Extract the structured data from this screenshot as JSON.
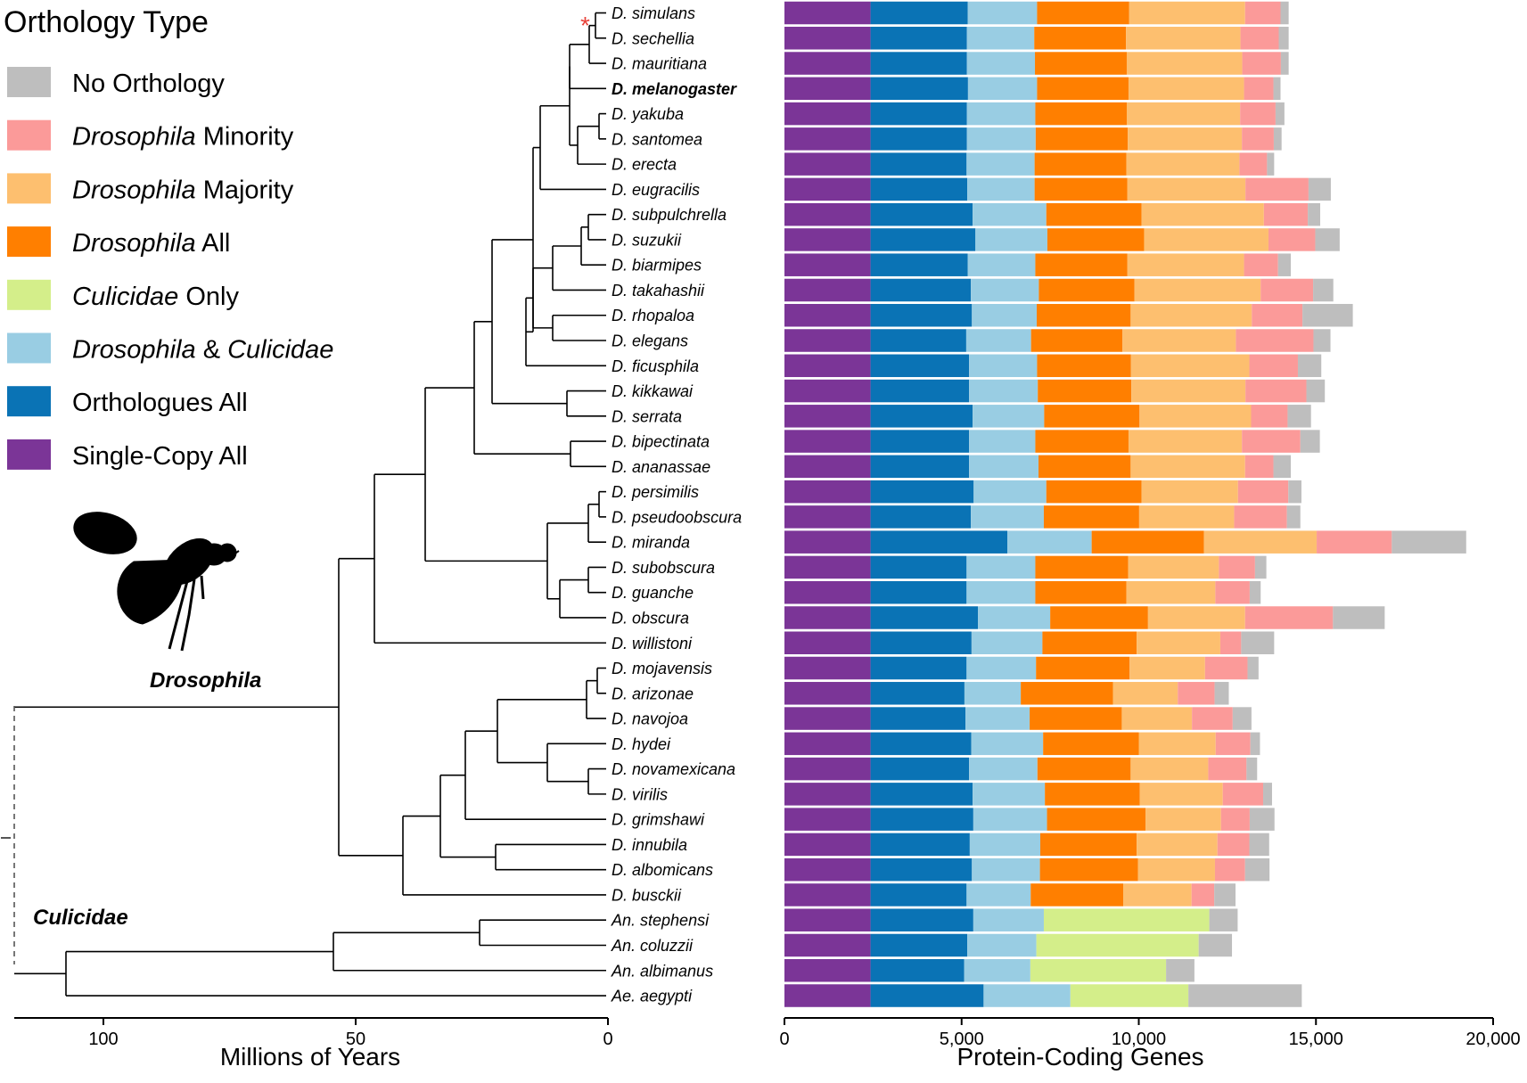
{
  "legend": {
    "title": "Orthology Type",
    "items": [
      {
        "key": "no_orthology",
        "parts": [
          {
            "t": "No Orthology",
            "i": false
          }
        ],
        "color": "#BEBEBE"
      },
      {
        "key": "drosophila_minority",
        "parts": [
          {
            "t": "Drosophila",
            "i": true
          },
          {
            "t": " Minority",
            "i": false
          }
        ],
        "color": "#FB9A99"
      },
      {
        "key": "drosophila_majority",
        "parts": [
          {
            "t": "Drosophila",
            "i": true
          },
          {
            "t": " Majority",
            "i": false
          }
        ],
        "color": "#FDBF6F"
      },
      {
        "key": "drosophila_all",
        "parts": [
          {
            "t": "Drosophila",
            "i": true
          },
          {
            "t": " All",
            "i": false
          }
        ],
        "color": "#FF7F00"
      },
      {
        "key": "culicidae_only",
        "parts": [
          {
            "t": "Culicidae",
            "i": true
          },
          {
            "t": " Only",
            "i": false
          }
        ],
        "color": "#D4EE8A"
      },
      {
        "key": "drosophila_culicidae",
        "parts": [
          {
            "t": "Drosophila",
            "i": true
          },
          {
            "t": " & ",
            "i": false
          },
          {
            "t": "Culicidae",
            "i": true
          }
        ],
        "color": "#99CDE3"
      },
      {
        "key": "orthologues_all",
        "parts": [
          {
            "t": "Orthologues All",
            "i": false
          }
        ],
        "color": "#0A73B5"
      },
      {
        "key": "single_copy_all",
        "parts": [
          {
            "t": "Single-Copy All",
            "i": false
          }
        ],
        "color": "#7B3597"
      }
    ]
  },
  "tree": {
    "axis_title": "Millions of Years",
    "ticks": [
      100,
      50,
      0
    ],
    "range": [
      120,
      0
    ],
    "clade_labels": [
      "Drosophila",
      "Culicidae"
    ],
    "marker": "*"
  },
  "chart_data": {
    "type": "bar",
    "orientation": "horizontal",
    "stacked": true,
    "xlabel": "Protein-Coding Genes",
    "xlim": [
      0,
      20000
    ],
    "xticks": [
      0,
      5000,
      10000,
      15000,
      20000
    ],
    "xtick_labels": [
      "0",
      "5,000",
      "10,000",
      "15,000",
      "20,000"
    ],
    "categories": [
      "D. simulans",
      "D. sechellia",
      "D. mauritiana",
      "D. melanogaster",
      "D. yakuba",
      "D. santomea",
      "D. erecta",
      "D. eugracilis",
      "D. subpulchrella",
      "D. suzukii",
      "D. biarmipes",
      "D. takahashii",
      "D. rhopaloa",
      "D. elegans",
      "D. ficusphila",
      "D. kikkawai",
      "D. serrata",
      "D. bipectinata",
      "D. ananassae",
      "D. persimilis",
      "D. pseudoobscura",
      "D. miranda",
      "D. subobscura",
      "D. guanche",
      "D. obscura",
      "D. willistoni",
      "D. mojavensis",
      "D. arizonae",
      "D. navojoa",
      "D. hydei",
      "D. novamexicana",
      "D. virilis",
      "D. grimshawi",
      "D. innubila",
      "D. albomicans",
      "D. busckii",
      "An. stephensi",
      "An. coluzzii",
      "An. albimanus",
      "Ae. aegypti"
    ],
    "bold_category": "D. melanogaster",
    "series": [
      {
        "name": "Single-Copy All",
        "color": "#7B3597",
        "values": [
          2430,
          2430,
          2430,
          2430,
          2430,
          2430,
          2430,
          2430,
          2430,
          2430,
          2430,
          2430,
          2430,
          2430,
          2430,
          2430,
          2430,
          2430,
          2430,
          2430,
          2430,
          2430,
          2430,
          2430,
          2430,
          2430,
          2430,
          2430,
          2430,
          2430,
          2430,
          2430,
          2430,
          2430,
          2430,
          2430,
          2430,
          2430,
          2430,
          2430
        ]
      },
      {
        "name": "Orthologues All",
        "color": "#0A73B5",
        "values": [
          2740,
          2720,
          2720,
          2750,
          2720,
          2720,
          2710,
          2730,
          2880,
          2960,
          2740,
          2830,
          2860,
          2700,
          2780,
          2780,
          2880,
          2780,
          2780,
          2910,
          2830,
          3860,
          2710,
          2710,
          3030,
          2850,
          2710,
          2650,
          2680,
          2840,
          2780,
          2880,
          2900,
          2800,
          2860,
          2710,
          2900,
          2730,
          2640,
          3190
        ]
      },
      {
        "name": "Drosophila & Culicidae",
        "color": "#99CDE3",
        "values": [
          1960,
          1900,
          1920,
          1950,
          1930,
          1940,
          1920,
          1900,
          2080,
          2030,
          1910,
          1920,
          1830,
          1830,
          1920,
          1940,
          2020,
          1870,
          1960,
          2050,
          2060,
          2380,
          1940,
          1940,
          2040,
          2000,
          1960,
          1590,
          1810,
          2030,
          1930,
          2040,
          2080,
          1990,
          1920,
          1810,
          1990,
          1950,
          1870,
          2450
        ]
      },
      {
        "name": "Drosophila All",
        "color": "#FF7F00",
        "values": [
          2600,
          2590,
          2590,
          2580,
          2580,
          2600,
          2590,
          2620,
          2690,
          2730,
          2600,
          2700,
          2650,
          2580,
          2650,
          2640,
          2690,
          2630,
          2600,
          2690,
          2690,
          3170,
          2620,
          2570,
          2760,
          2660,
          2640,
          2600,
          2600,
          2700,
          2630,
          2680,
          2780,
          2720,
          2770,
          2610,
          0,
          0,
          0,
          0
        ]
      },
      {
        "name": "Drosophila Majority",
        "color": "#FDBF6F",
        "values": [
          3270,
          3230,
          3260,
          3260,
          3200,
          3220,
          3190,
          3330,
          3450,
          3510,
          3290,
          3560,
          3420,
          3200,
          3340,
          3220,
          3150,
          3200,
          3230,
          2720,
          2680,
          3180,
          2560,
          2510,
          2740,
          2360,
          2130,
          1830,
          1980,
          2170,
          2190,
          2340,
          2130,
          2280,
          2170,
          1930,
          0,
          0,
          0,
          0
        ]
      },
      {
        "name": "Drosophila Minority",
        "color": "#FB9A99",
        "values": [
          1000,
          1080,
          1090,
          830,
          1000,
          900,
          780,
          1780,
          1240,
          1320,
          960,
          1480,
          1430,
          2190,
          1370,
          1720,
          1030,
          1650,
          800,
          1420,
          1490,
          2120,
          1020,
          970,
          2480,
          590,
          1200,
          1040,
          1150,
          980,
          1080,
          1140,
          810,
          900,
          850,
          640,
          0,
          0,
          0,
          0
        ]
      },
      {
        "name": "Culicidae Only",
        "color": "#D4EE8A",
        "values": [
          0,
          0,
          0,
          0,
          0,
          0,
          0,
          0,
          0,
          0,
          0,
          0,
          0,
          0,
          0,
          0,
          0,
          0,
          0,
          0,
          0,
          0,
          0,
          0,
          0,
          0,
          0,
          0,
          0,
          0,
          0,
          0,
          0,
          0,
          0,
          0,
          4670,
          4580,
          3830,
          3330
        ]
      },
      {
        "name": "No Orthology",
        "color": "#BEBEBE",
        "values": [
          230,
          280,
          220,
          200,
          250,
          220,
          200,
          630,
          350,
          690,
          360,
          570,
          1420,
          480,
          660,
          520,
          660,
          550,
          490,
          370,
          380,
          2100,
          320,
          310,
          1460,
          930,
          310,
          400,
          530,
          270,
          300,
          250,
          700,
          560,
          690,
          600,
          800,
          940,
          800,
          3200
        ]
      }
    ]
  }
}
